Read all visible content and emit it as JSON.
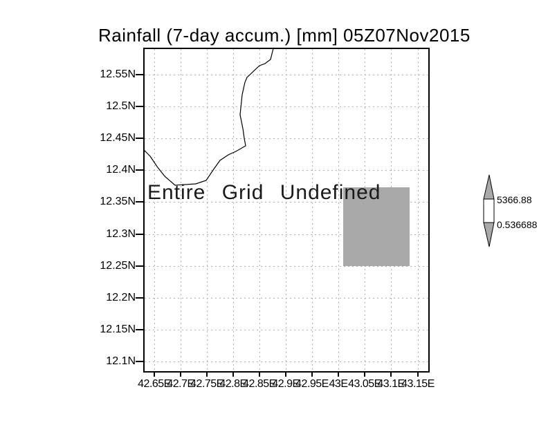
{
  "title": "Rainfall (7-day accum.) [mm] 05Z07Nov2015",
  "plot": {
    "message": "Entire Grid Undefined"
  },
  "x_axis": {
    "tick_labels": [
      "42.65E",
      "42.7E",
      "42.75E",
      "42.8E",
      "42.85E",
      "42.9E",
      "42.95E",
      "43E",
      "43.05E",
      "43.1E",
      "43.15E"
    ]
  },
  "y_axis": {
    "tick_labels": [
      "12.55N",
      "12.5N",
      "12.45N",
      "12.4N",
      "12.35N",
      "12.3N",
      "12.25N",
      "12.2N",
      "12.15N",
      "12.1N"
    ]
  },
  "colorbar": {
    "max_label": "5366.88",
    "min_label": "0.536688"
  },
  "colors": {
    "undefined_gray": "#a9a9a9",
    "gridline_gray": "#b0b0b0",
    "frame_black": "#000000",
    "background": "#ffffff"
  },
  "chart_data": {
    "type": "map",
    "title": "Rainfall (7-day accum.) [mm] 05Z07Nov2015",
    "variable": "Rainfall (7-day accum.)",
    "units": "mm",
    "valid_time": "05Z07Nov2015",
    "x_tick_labels": [
      "42.65E",
      "42.7E",
      "42.75E",
      "42.8E",
      "42.85E",
      "42.9E",
      "42.95E",
      "43E",
      "43.05E",
      "43.1E",
      "43.15E"
    ],
    "y_tick_labels": [
      "12.55N",
      "12.5N",
      "12.45N",
      "12.4N",
      "12.35N",
      "12.3N",
      "12.25N",
      "12.2N",
      "12.15N",
      "12.1N"
    ],
    "lon_range_approx": [
      42.625,
      43.175
    ],
    "lat_range_approx": [
      12.08,
      12.58
    ],
    "grid": "dotted",
    "status_annotation": "Entire Grid Undefined",
    "colorbar": {
      "min": 0.536688,
      "max": 5366.88,
      "min_label": "0.536688",
      "max_label": "5366.88"
    },
    "masked_region_approx": {
      "lon": [
        43.01,
        43.135
      ],
      "lat": [
        12.25,
        12.375
      ]
    },
    "data_values": "none plotted (entire grid undefined)"
  }
}
